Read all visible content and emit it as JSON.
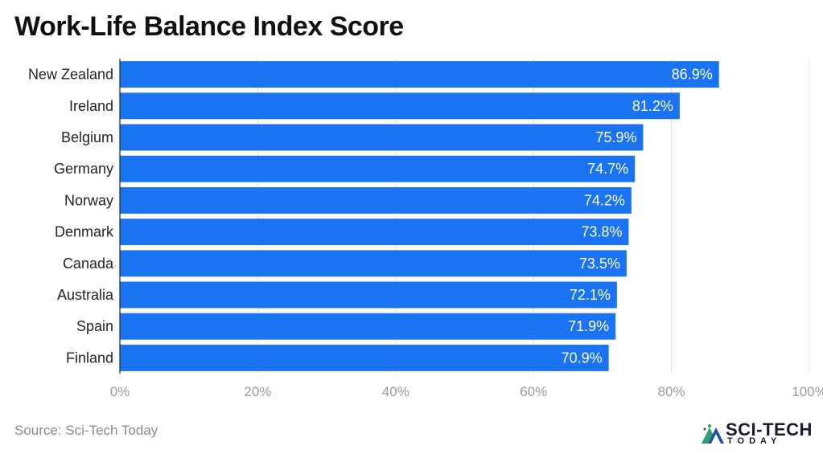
{
  "chart_data": {
    "type": "bar",
    "orientation": "horizontal",
    "title": "Work-Life Balance Index Score",
    "categories": [
      "New Zealand",
      "Ireland",
      "Belgium",
      "Germany",
      "Norway",
      "Denmark",
      "Canada",
      "Australia",
      "Spain",
      "Finland"
    ],
    "values": [
      86.9,
      81.2,
      75.9,
      74.7,
      74.2,
      73.8,
      73.5,
      72.1,
      71.9,
      70.9
    ],
    "data_labels": [
      "86.9%",
      "81.2%",
      "75.9%",
      "74.7%",
      "74.2%",
      "73.8%",
      "73.5%",
      "72.1%",
      "71.9%",
      "70.9%"
    ],
    "xlim": [
      0,
      100
    ],
    "x_ticks": [
      "0%",
      "20%",
      "40%",
      "60%",
      "80%",
      "100%"
    ],
    "grid": "vertical",
    "bar_color": "#1a73f0",
    "legend": "none"
  },
  "footer": {
    "source": "Source: Sci-Tech Today",
    "logo_line1": "SCI-TECH",
    "logo_line2": "TODAY"
  }
}
